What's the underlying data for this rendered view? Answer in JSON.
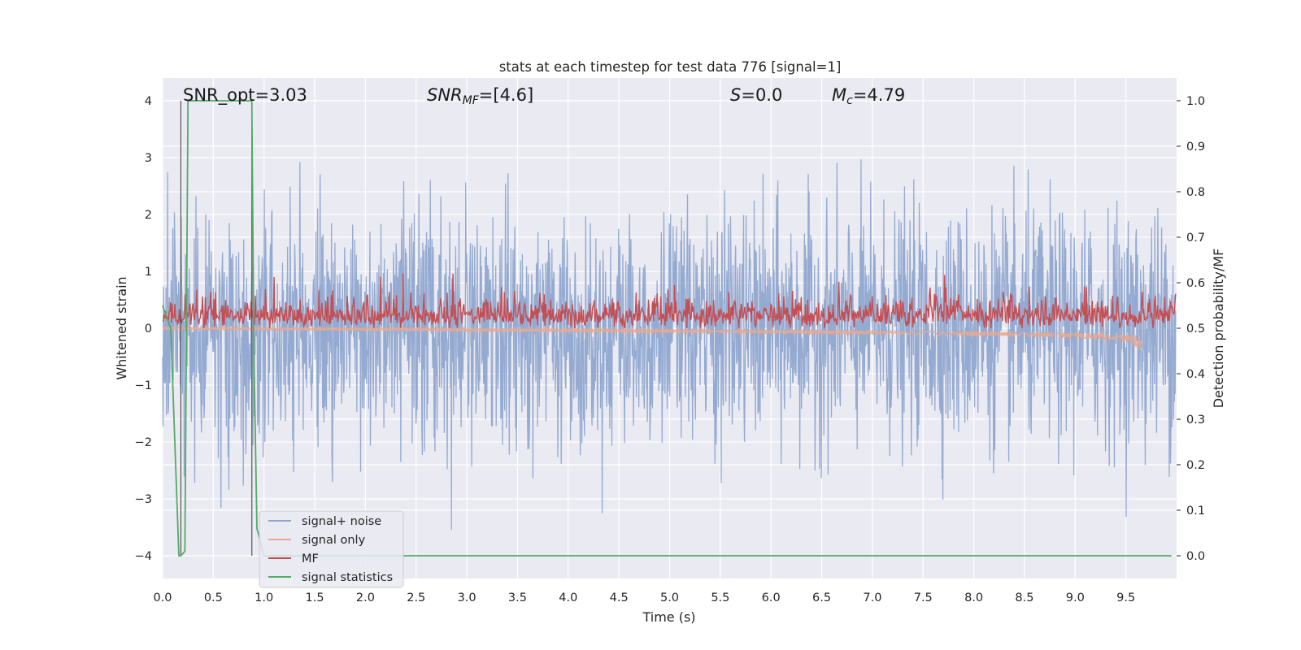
{
  "chart_data": {
    "type": "line",
    "title": "stats at each timestep for test data 776 [signal=1]",
    "xlabel": "Time (s)",
    "ylabel": "Whitened strain",
    "y2label": "Detection probability/MF",
    "xlim": [
      0,
      10
    ],
    "ylim": [
      -4.4,
      4.4
    ],
    "y2lim": [
      -0.05,
      1.05
    ],
    "x_ticks": [
      "0.0",
      "0.5",
      "1.0",
      "1.5",
      "2.0",
      "2.5",
      "3.0",
      "3.5",
      "4.0",
      "4.5",
      "5.0",
      "5.5",
      "6.0",
      "6.5",
      "7.0",
      "7.5",
      "8.0",
      "8.5",
      "9.0",
      "9.5"
    ],
    "y_ticks": [
      "4",
      "3",
      "2",
      "1",
      "0",
      "−1",
      "−2",
      "−3",
      "−4"
    ],
    "y2_ticks": [
      "1.0",
      "0.9",
      "0.8",
      "0.7",
      "0.6",
      "0.5",
      "0.4",
      "0.3",
      "0.2",
      "0.1",
      "0.0"
    ],
    "grid": true,
    "legend_position": "lower-left",
    "annotations": {
      "snr_opt": "SNR_opt=3.03",
      "snr_mf_sym": "SNR",
      "snr_mf_sub": "MF",
      "snr_mf_val": "=[4.6]",
      "s_sym": "S",
      "s_val": "=0.0",
      "mc_sym": "M",
      "mc_sub": "c",
      "mc_val": "=4.79"
    },
    "series": [
      {
        "name": "signal+ noise",
        "color": "#8fa7cf",
        "axis": "left",
        "description_values": {
          "y_std": 1.0,
          "y_min": -3.95,
          "y_max": 4.02
        }
      },
      {
        "name": "signal only",
        "color": "#e9a88f",
        "axis": "left",
        "description_values": {
          "x_end": 9.65,
          "y_end": -0.25
        }
      },
      {
        "name": "MF",
        "color": "#c44e52",
        "axis": "right",
        "description_values": {
          "baseline": 0.51,
          "y_max": 0.62
        }
      },
      {
        "name": "signal statistics",
        "color": "#55a868",
        "axis": "right",
        "x": [
          0.0,
          0.03,
          0.08,
          0.12,
          0.16,
          0.18,
          0.22,
          0.25,
          0.88,
          0.9,
          0.93,
          1.0,
          9.95
        ],
        "y": [
          0.55,
          0.53,
          0.5,
          0.25,
          0.0,
          0.0,
          0.01,
          1.0,
          1.0,
          0.45,
          0.06,
          0.0,
          0.0
        ]
      }
    ],
    "vlines": [
      0.18,
      0.88
    ]
  }
}
